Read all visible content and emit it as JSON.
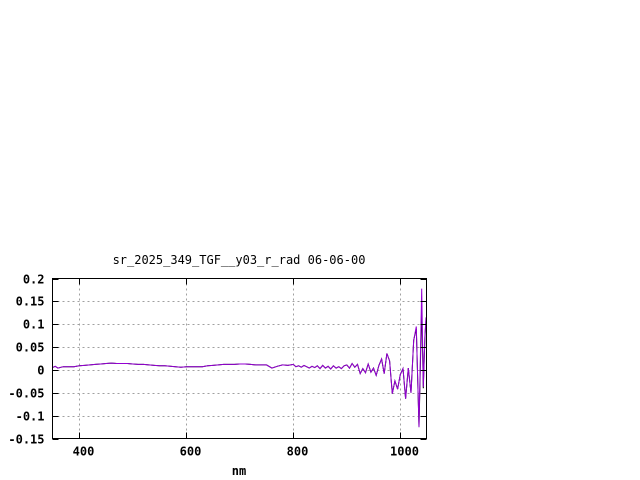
{
  "chart_data": {
    "type": "line",
    "title": "sr_2025_349_TGF__y03_r_rad 06-06-00",
    "xlabel": "nm",
    "ylabel": "",
    "xlim": [
      350,
      1049
    ],
    "ylim": [
      -0.15,
      0.2
    ],
    "grid": true,
    "xticks": [
      400,
      600,
      800,
      1000
    ],
    "xtick_labels": [
      "400",
      "600",
      "800",
      "1000"
    ],
    "yticks": [
      0.2,
      0.15,
      0.1,
      0.05,
      0,
      -0.05,
      -0.1,
      -0.15
    ],
    "ytick_labels": [
      "0.2",
      "0.15",
      "0.1",
      "0.05",
      "0",
      "-0.05",
      "-0.1",
      "-0.15"
    ],
    "series": [
      {
        "color": "#000000",
        "points": [
          [
            350,
            0.005
          ],
          [
            355,
            0.008
          ],
          [
            360,
            0.004
          ],
          [
            370,
            0.007
          ],
          [
            380,
            0.007
          ],
          [
            390,
            0.007
          ],
          [
            400,
            0.009
          ],
          [
            410,
            0.01
          ],
          [
            420,
            0.011
          ],
          [
            430,
            0.012
          ],
          [
            440,
            0.013
          ],
          [
            450,
            0.014
          ],
          [
            460,
            0.015
          ],
          [
            470,
            0.014
          ],
          [
            480,
            0.014
          ],
          [
            490,
            0.014
          ],
          [
            500,
            0.013
          ],
          [
            510,
            0.012
          ],
          [
            520,
            0.012
          ],
          [
            530,
            0.011
          ],
          [
            540,
            0.01
          ],
          [
            550,
            0.009
          ],
          [
            560,
            0.009
          ],
          [
            570,
            0.008
          ],
          [
            580,
            0.007
          ],
          [
            590,
            0.006
          ],
          [
            600,
            0.007
          ],
          [
            610,
            0.007
          ],
          [
            620,
            0.007
          ],
          [
            630,
            0.007
          ],
          [
            640,
            0.009
          ],
          [
            650,
            0.01
          ],
          [
            660,
            0.011
          ],
          [
            670,
            0.012
          ],
          [
            680,
            0.012
          ],
          [
            690,
            0.012
          ],
          [
            700,
            0.013
          ],
          [
            710,
            0.013
          ],
          [
            720,
            0.012
          ],
          [
            730,
            0.011
          ],
          [
            740,
            0.011
          ],
          [
            750,
            0.011
          ],
          [
            760,
            0.004
          ],
          [
            770,
            0.008
          ],
          [
            780,
            0.011
          ],
          [
            790,
            0.01
          ],
          [
            800,
            0.012
          ],
          [
            805,
            0.007
          ],
          [
            810,
            0.009
          ],
          [
            815,
            0.006
          ],
          [
            820,
            0.01
          ],
          [
            825,
            0.007
          ],
          [
            830,
            0.004
          ],
          [
            835,
            0.008
          ],
          [
            840,
            0.005
          ],
          [
            845,
            0.009
          ],
          [
            850,
            0.003
          ],
          [
            855,
            0.01
          ],
          [
            860,
            0.004
          ],
          [
            865,
            0.008
          ],
          [
            870,
            0.002
          ],
          [
            875,
            0.009
          ],
          [
            880,
            0.004
          ],
          [
            885,
            0.007
          ],
          [
            890,
            0.003
          ],
          [
            895,
            0.009
          ],
          [
            900,
            0.011
          ],
          [
            905,
            0.004
          ],
          [
            910,
            0.014
          ],
          [
            915,
            0.006
          ],
          [
            920,
            0.012
          ],
          [
            925,
            -0.008
          ],
          [
            930,
            0.003
          ],
          [
            935,
            -0.006
          ],
          [
            940,
            0.013
          ],
          [
            945,
            -0.005
          ],
          [
            950,
            0.004
          ],
          [
            955,
            -0.012
          ],
          [
            960,
            0.01
          ],
          [
            965,
            0.024
          ],
          [
            970,
            -0.008
          ],
          [
            975,
            0.036
          ],
          [
            980,
            0.02
          ],
          [
            985,
            -0.052
          ],
          [
            990,
            -0.024
          ],
          [
            995,
            -0.042
          ],
          [
            1000,
            -0.01
          ],
          [
            1005,
            0.003
          ],
          [
            1010,
            -0.063
          ],
          [
            1015,
            0.004
          ],
          [
            1020,
            -0.05
          ],
          [
            1025,
            0.065
          ],
          [
            1030,
            0.09
          ],
          [
            1035,
            -0.125
          ],
          [
            1040,
            0.14
          ],
          [
            1043,
            -0.04
          ],
          [
            1046,
            0.07
          ],
          [
            1048,
            0.11
          ]
        ]
      },
      {
        "color": "#9400d3",
        "points": [
          [
            350,
            0.005
          ],
          [
            355,
            0.008
          ],
          [
            360,
            0.004
          ],
          [
            370,
            0.007
          ],
          [
            380,
            0.007
          ],
          [
            390,
            0.007
          ],
          [
            400,
            0.009
          ],
          [
            410,
            0.01
          ],
          [
            420,
            0.011
          ],
          [
            430,
            0.012
          ],
          [
            440,
            0.013
          ],
          [
            450,
            0.014
          ],
          [
            460,
            0.015
          ],
          [
            470,
            0.014
          ],
          [
            480,
            0.014
          ],
          [
            490,
            0.014
          ],
          [
            500,
            0.013
          ],
          [
            510,
            0.012
          ],
          [
            520,
            0.012
          ],
          [
            530,
            0.011
          ],
          [
            540,
            0.01
          ],
          [
            550,
            0.009
          ],
          [
            560,
            0.009
          ],
          [
            570,
            0.008
          ],
          [
            580,
            0.007
          ],
          [
            590,
            0.006
          ],
          [
            600,
            0.007
          ],
          [
            610,
            0.007
          ],
          [
            620,
            0.007
          ],
          [
            630,
            0.007
          ],
          [
            640,
            0.009
          ],
          [
            650,
            0.01
          ],
          [
            660,
            0.011
          ],
          [
            670,
            0.012
          ],
          [
            680,
            0.012
          ],
          [
            690,
            0.012
          ],
          [
            700,
            0.013
          ],
          [
            710,
            0.013
          ],
          [
            720,
            0.012
          ],
          [
            730,
            0.011
          ],
          [
            740,
            0.011
          ],
          [
            750,
            0.011
          ],
          [
            760,
            0.004
          ],
          [
            770,
            0.008
          ],
          [
            780,
            0.011
          ],
          [
            790,
            0.01
          ],
          [
            800,
            0.012
          ],
          [
            805,
            0.007
          ],
          [
            810,
            0.009
          ],
          [
            815,
            0.006
          ],
          [
            820,
            0.01
          ],
          [
            825,
            0.007
          ],
          [
            830,
            0.004
          ],
          [
            835,
            0.008
          ],
          [
            840,
            0.005
          ],
          [
            845,
            0.009
          ],
          [
            850,
            0.003
          ],
          [
            855,
            0.01
          ],
          [
            860,
            0.004
          ],
          [
            865,
            0.008
          ],
          [
            870,
            0.002
          ],
          [
            875,
            0.009
          ],
          [
            880,
            0.004
          ],
          [
            885,
            0.007
          ],
          [
            890,
            0.003
          ],
          [
            895,
            0.009
          ],
          [
            900,
            0.011
          ],
          [
            905,
            0.004
          ],
          [
            910,
            0.014
          ],
          [
            915,
            0.006
          ],
          [
            920,
            0.012
          ],
          [
            925,
            -0.008
          ],
          [
            930,
            0.003
          ],
          [
            935,
            -0.006
          ],
          [
            940,
            0.013
          ],
          [
            945,
            -0.005
          ],
          [
            950,
            0.004
          ],
          [
            955,
            -0.012
          ],
          [
            960,
            0.01
          ],
          [
            965,
            0.024
          ],
          [
            970,
            -0.008
          ],
          [
            975,
            0.036
          ],
          [
            980,
            0.02
          ],
          [
            985,
            -0.052
          ],
          [
            990,
            -0.024
          ],
          [
            995,
            -0.042
          ],
          [
            1000,
            -0.01
          ],
          [
            1005,
            0.003
          ],
          [
            1010,
            -0.063
          ],
          [
            1015,
            0.004
          ],
          [
            1020,
            -0.05
          ],
          [
            1025,
            0.065
          ],
          [
            1030,
            0.095
          ],
          [
            1035,
            -0.125
          ],
          [
            1040,
            0.178
          ],
          [
            1043,
            -0.037
          ],
          [
            1046,
            0.075
          ],
          [
            1048,
            0.115
          ]
        ]
      }
    ]
  }
}
